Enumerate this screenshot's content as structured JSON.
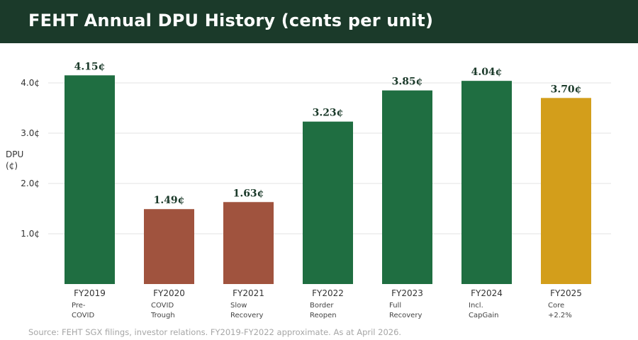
{
  "header": {
    "title": "FEHT Annual DPU History (cents per unit)"
  },
  "footer": {
    "source": "Source: FEHT SGX filings, investor relations. FY2019-FY2022 approximate. As at April 2026."
  },
  "colors": {
    "header_bg": "#1b3a2a",
    "green": "#1f6e41",
    "red": "#a0533e",
    "gold": "#d39e1b",
    "value_label": "#1b3a2a",
    "grid": "#e3e3e3"
  },
  "chart_data": {
    "type": "bar",
    "title": "FEHT Annual DPU History (cents per unit)",
    "ylabel": "DPU (¢)",
    "ylabel_lines": [
      "DPU",
      "(¢)"
    ],
    "xlabel": "",
    "ylim": [
      0,
      4.4
    ],
    "yticks": [
      {
        "value": 1.0,
        "label": "1.0¢"
      },
      {
        "value": 2.0,
        "label": "2.0¢"
      },
      {
        "value": 3.0,
        "label": "3.0¢"
      },
      {
        "value": 4.0,
        "label": "4.0¢"
      }
    ],
    "grid": true,
    "categories": [
      "FY2019",
      "FY2020",
      "FY2021",
      "FY2022",
      "FY2023",
      "FY2024",
      "FY2025"
    ],
    "sublabels": [
      [
        "Pre-",
        "COVID"
      ],
      [
        "COVID",
        "Trough"
      ],
      [
        "Slow",
        "Recovery"
      ],
      [
        "Border",
        "Reopen"
      ],
      [
        "Full",
        "Recovery"
      ],
      [
        "Incl.",
        "CapGain"
      ],
      [
        "Core",
        "+2.2%"
      ]
    ],
    "values": [
      4.15,
      1.49,
      1.63,
      3.23,
      3.85,
      4.04,
      3.7
    ],
    "value_labels": [
      "4.15¢",
      "1.49¢",
      "1.63¢",
      "3.23¢",
      "3.85¢",
      "4.04¢",
      "3.70¢"
    ],
    "bar_colors": [
      "green",
      "red",
      "red",
      "green",
      "green",
      "green",
      "gold"
    ]
  }
}
